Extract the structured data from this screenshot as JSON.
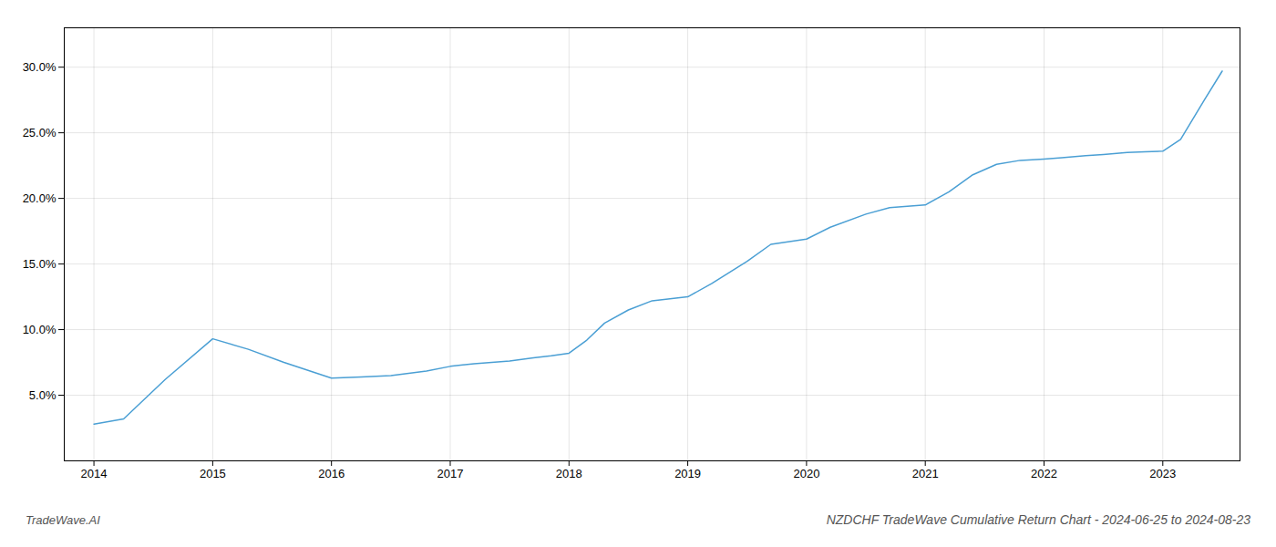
{
  "chart_data": {
    "type": "line",
    "title": "NZDCHF TradeWave Cumulative Return Chart - 2024-06-25 to 2024-08-23",
    "annotations": [
      "TradeWave.AI"
    ],
    "x": [
      2014.0,
      2014.25,
      2014.6,
      2015.0,
      2015.3,
      2015.6,
      2016.0,
      2016.25,
      2016.5,
      2016.8,
      2017.0,
      2017.2,
      2017.5,
      2017.7,
      2017.85,
      2018.0,
      2018.15,
      2018.3,
      2018.5,
      2018.7,
      2019.0,
      2019.2,
      2019.5,
      2019.7,
      2020.0,
      2020.2,
      2020.5,
      2020.7,
      2021.0,
      2021.2,
      2021.4,
      2021.6,
      2021.8,
      2022.0,
      2022.15,
      2022.35,
      2022.5,
      2022.7,
      2022.85,
      2023.0,
      2023.15,
      2023.35,
      2023.5
    ],
    "values": [
      2.8,
      3.2,
      6.2,
      9.3,
      8.5,
      7.5,
      6.3,
      6.4,
      6.5,
      6.85,
      7.2,
      7.4,
      7.6,
      7.85,
      8.0,
      8.2,
      9.2,
      10.5,
      11.5,
      12.2,
      12.5,
      13.5,
      15.2,
      16.5,
      16.9,
      17.8,
      18.8,
      19.3,
      19.5,
      20.5,
      21.8,
      22.6,
      22.9,
      23.0,
      23.1,
      23.25,
      23.35,
      23.5,
      23.55,
      23.6,
      24.5,
      27.5,
      29.7
    ],
    "color": "#4a9fd4",
    "xlim": [
      2013.75,
      2023.65
    ],
    "ylim": [
      0.0,
      33.0
    ],
    "xticks": [
      2014,
      2015,
      2016,
      2017,
      2018,
      2019,
      2020,
      2021,
      2022,
      2023
    ],
    "yticks": [
      {
        "value": 5.0,
        "label": "5.0%"
      },
      {
        "value": 10.0,
        "label": "10.0%"
      },
      {
        "value": 15.0,
        "label": "15.0%"
      },
      {
        "value": 20.0,
        "label": "20.0%"
      },
      {
        "value": 25.0,
        "label": "25.0%"
      },
      {
        "value": 30.0,
        "label": "30.0%"
      }
    ],
    "grid": true
  }
}
